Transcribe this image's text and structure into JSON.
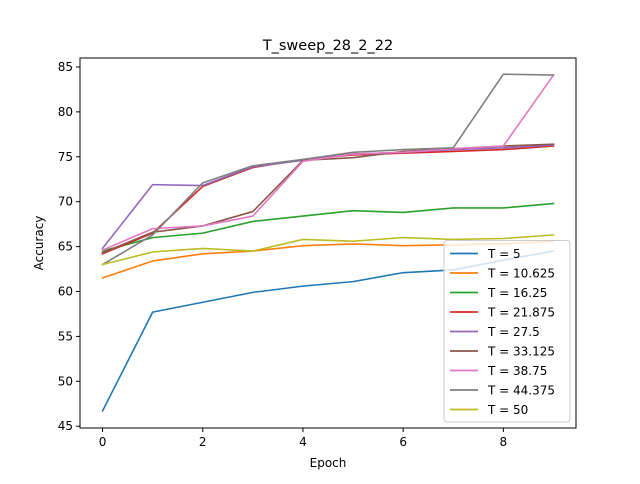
{
  "chart_data": {
    "type": "line",
    "title": "T_sweep_28_2_22",
    "xlabel": "Epoch",
    "ylabel": "Accuracy",
    "xlim": [
      -0.45,
      9.45
    ],
    "ylim": [
      44.8,
      86.0
    ],
    "xticks": [
      0,
      2,
      4,
      6,
      8
    ],
    "yticks": [
      45,
      50,
      55,
      60,
      65,
      70,
      75,
      80,
      85
    ],
    "legend_position": "lower-right",
    "x": [
      0,
      1,
      2,
      3,
      4,
      5,
      6,
      7,
      8,
      9
    ],
    "series": [
      {
        "name": "T = 5",
        "color": "#1f77b4",
        "values": [
          46.7,
          57.7,
          58.8,
          59.9,
          60.6,
          61.1,
          62.1,
          62.4,
          63.5,
          64.5
        ]
      },
      {
        "name": "T = 10.625",
        "color": "#ff7f0e",
        "values": [
          61.5,
          63.4,
          64.2,
          64.5,
          65.1,
          65.3,
          65.1,
          65.2,
          65.3,
          65.6
        ]
      },
      {
        "name": "T = 16.25",
        "color": "#2ca02c",
        "values": [
          64.5,
          66.0,
          66.5,
          67.8,
          68.4,
          69.0,
          68.8,
          69.3,
          69.3,
          69.8
        ]
      },
      {
        "name": "T = 21.875",
        "color": "#d62728",
        "values": [
          64.2,
          66.5,
          71.7,
          73.8,
          74.7,
          75.2,
          75.4,
          75.6,
          75.8,
          76.2
        ]
      },
      {
        "name": "T = 27.5",
        "color": "#9467bd",
        "values": [
          64.8,
          71.9,
          71.8,
          73.9,
          74.6,
          75.3,
          75.5,
          75.8,
          76.0,
          76.3
        ]
      },
      {
        "name": "T = 33.125",
        "color": "#8c564b",
        "values": [
          64.3,
          66.6,
          67.3,
          68.9,
          74.6,
          74.9,
          75.6,
          75.9,
          76.2,
          76.4
        ]
      },
      {
        "name": "T = 38.75",
        "color": "#e377c2",
        "values": [
          64.6,
          67.0,
          67.3,
          68.4,
          74.5,
          75.3,
          75.5,
          75.9,
          76.2,
          84.1
        ]
      },
      {
        "name": "T = 44.375",
        "color": "#7f7f7f",
        "values": [
          63.0,
          66.3,
          72.1,
          74.0,
          74.7,
          75.5,
          75.8,
          76.0,
          84.2,
          84.1
        ]
      },
      {
        "name": "T = 50",
        "color": "#bcbd22",
        "values": [
          63.0,
          64.4,
          64.8,
          64.5,
          65.8,
          65.6,
          66.0,
          65.8,
          65.9,
          66.3
        ]
      }
    ]
  }
}
